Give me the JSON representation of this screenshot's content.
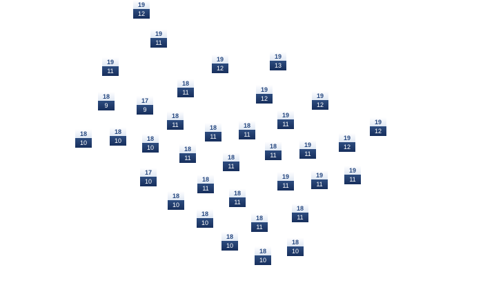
{
  "markers": [
    {
      "high": "19",
      "low": "12"
    },
    {
      "high": "19",
      "low": "11"
    },
    {
      "high": "19",
      "low": "11"
    },
    {
      "high": "19",
      "low": "12"
    },
    {
      "high": "19",
      "low": "13"
    },
    {
      "high": "18",
      "low": "11"
    },
    {
      "high": "18",
      "low": "9"
    },
    {
      "high": "17",
      "low": "9"
    },
    {
      "high": "19",
      "low": "12"
    },
    {
      "high": "19",
      "low": "12"
    },
    {
      "high": "18",
      "low": "11"
    },
    {
      "high": "18",
      "low": "11"
    },
    {
      "high": "18",
      "low": "11"
    },
    {
      "high": "19",
      "low": "11"
    },
    {
      "high": "19",
      "low": "12"
    },
    {
      "high": "18",
      "low": "10"
    },
    {
      "high": "18",
      "low": "10"
    },
    {
      "high": "18",
      "low": "10"
    },
    {
      "high": "19",
      "low": "12"
    },
    {
      "high": "18",
      "low": "11"
    },
    {
      "high": "19",
      "low": "11"
    },
    {
      "high": "18",
      "low": "11"
    },
    {
      "high": "18",
      "low": "11"
    },
    {
      "high": "19",
      "low": "11"
    },
    {
      "high": "17",
      "low": "10"
    },
    {
      "high": "18",
      "low": "11"
    },
    {
      "high": "19",
      "low": "11"
    },
    {
      "high": "19",
      "low": "11"
    },
    {
      "high": "18",
      "low": "11"
    },
    {
      "high": "18",
      "low": "10"
    },
    {
      "high": "18",
      "low": "10"
    },
    {
      "high": "18",
      "low": "11"
    },
    {
      "high": "18",
      "low": "11"
    },
    {
      "high": "18",
      "low": "10"
    },
    {
      "high": "18",
      "low": "10"
    },
    {
      "high": "18",
      "low": "10"
    }
  ],
  "colors": {
    "label_top_text": "#24467e",
    "label_bottom_bg": "#1f3a6a",
    "label_bottom_text": "#ffffff"
  }
}
